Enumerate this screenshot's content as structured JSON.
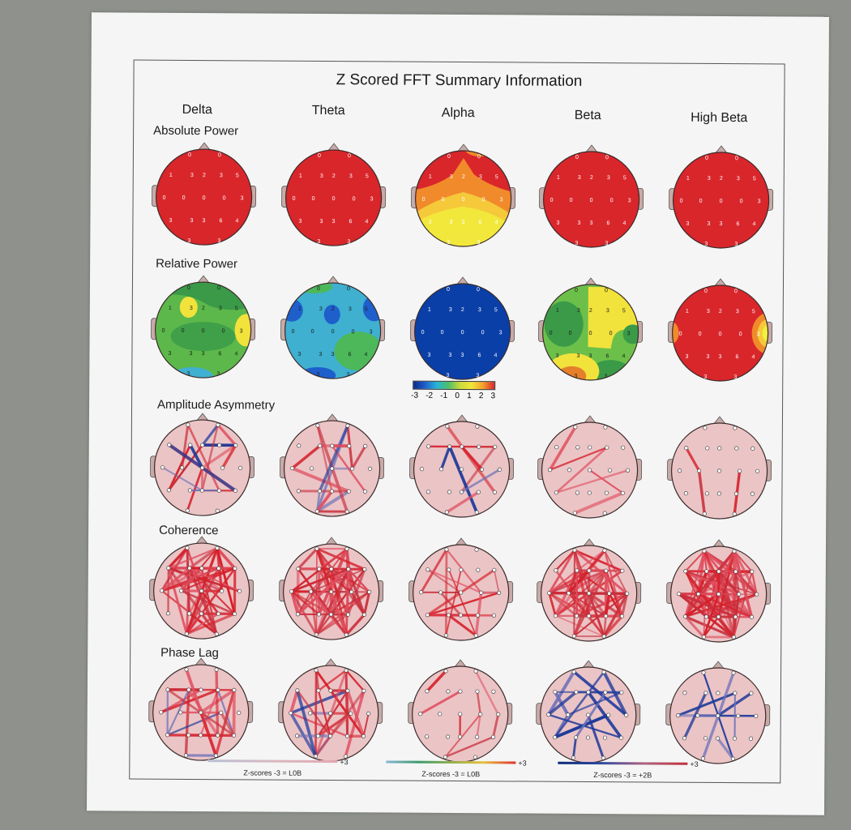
{
  "title": "Z Scored FFT Summary Information",
  "bands": [
    "Delta",
    "Theta",
    "Alpha",
    "Beta",
    "High Beta"
  ],
  "rows": [
    "Absolute Power",
    "Relative Power",
    "Amplitude Asymmetry",
    "Coherence",
    "Phase Lag"
  ],
  "colorbar": {
    "ticks": [
      "-3",
      "-2",
      "-1",
      "0",
      "1",
      "2",
      "3"
    ]
  },
  "legends": [
    {
      "caption": "Z-scores -3 = L0B",
      "plus": "+3",
      "gradient": "linear-gradient(to right,#b9bfd6,#d8b7c0,#e4a7b0)"
    },
    {
      "caption": "Z-scores -3 = L0B",
      "plus": "+3",
      "gradient": "linear-gradient(to right,#8ab7d2,#3a9a6e,#8fb04a,#e8c040,#e03030)"
    },
    {
      "caption": "Z-scores -3 = +2B",
      "plus": "+3",
      "gradient": "linear-gradient(to right,#0c2a78,#2d4aa0,#b06080,#c0303a)"
    }
  ],
  "colors": {
    "high": "#d9262b",
    "low": "#0a3fa8",
    "headSkin": "#ebc4c6",
    "nose": "#c8aaa8"
  },
  "chart_data": {
    "type": "heatmap",
    "title": "Z Scored FFT Summary Information",
    "columns": [
      "Delta",
      "Theta",
      "Alpha",
      "Beta",
      "High Beta"
    ],
    "rows": [
      "Absolute Power",
      "Relative Power",
      "Amplitude Asymmetry",
      "Coherence",
      "Phase Lag"
    ],
    "colorbar_range": [
      -3,
      3
    ],
    "maps": {
      "Absolute Power": {
        "Delta": "all red (+3)",
        "Theta": "all red (+3)",
        "Alpha": "red frontal/temporal, orange central, yellow posterior",
        "Beta": "all red (+3)",
        "High Beta": "all red (+3)"
      },
      "Relative Power": {
        "Delta": "green with yellow spots left-frontal and right-temporal, cyan occipital",
        "Theta": "cyan/blue with blue spots, green right-posterior",
        "Alpha": "all dark blue (-3)",
        "Beta": "green with yellow midline/right, orange left-occipital",
        "High Beta": "red with yellow right-temporal, orange left-temporal"
      }
    },
    "electrode_labels_sample": [
      "0",
      "0",
      "1",
      "3",
      "2",
      "3",
      "5",
      "0",
      "0",
      "0",
      "0",
      "3",
      "3",
      "3",
      "3",
      "6",
      "4",
      "3",
      "3"
    ]
  }
}
